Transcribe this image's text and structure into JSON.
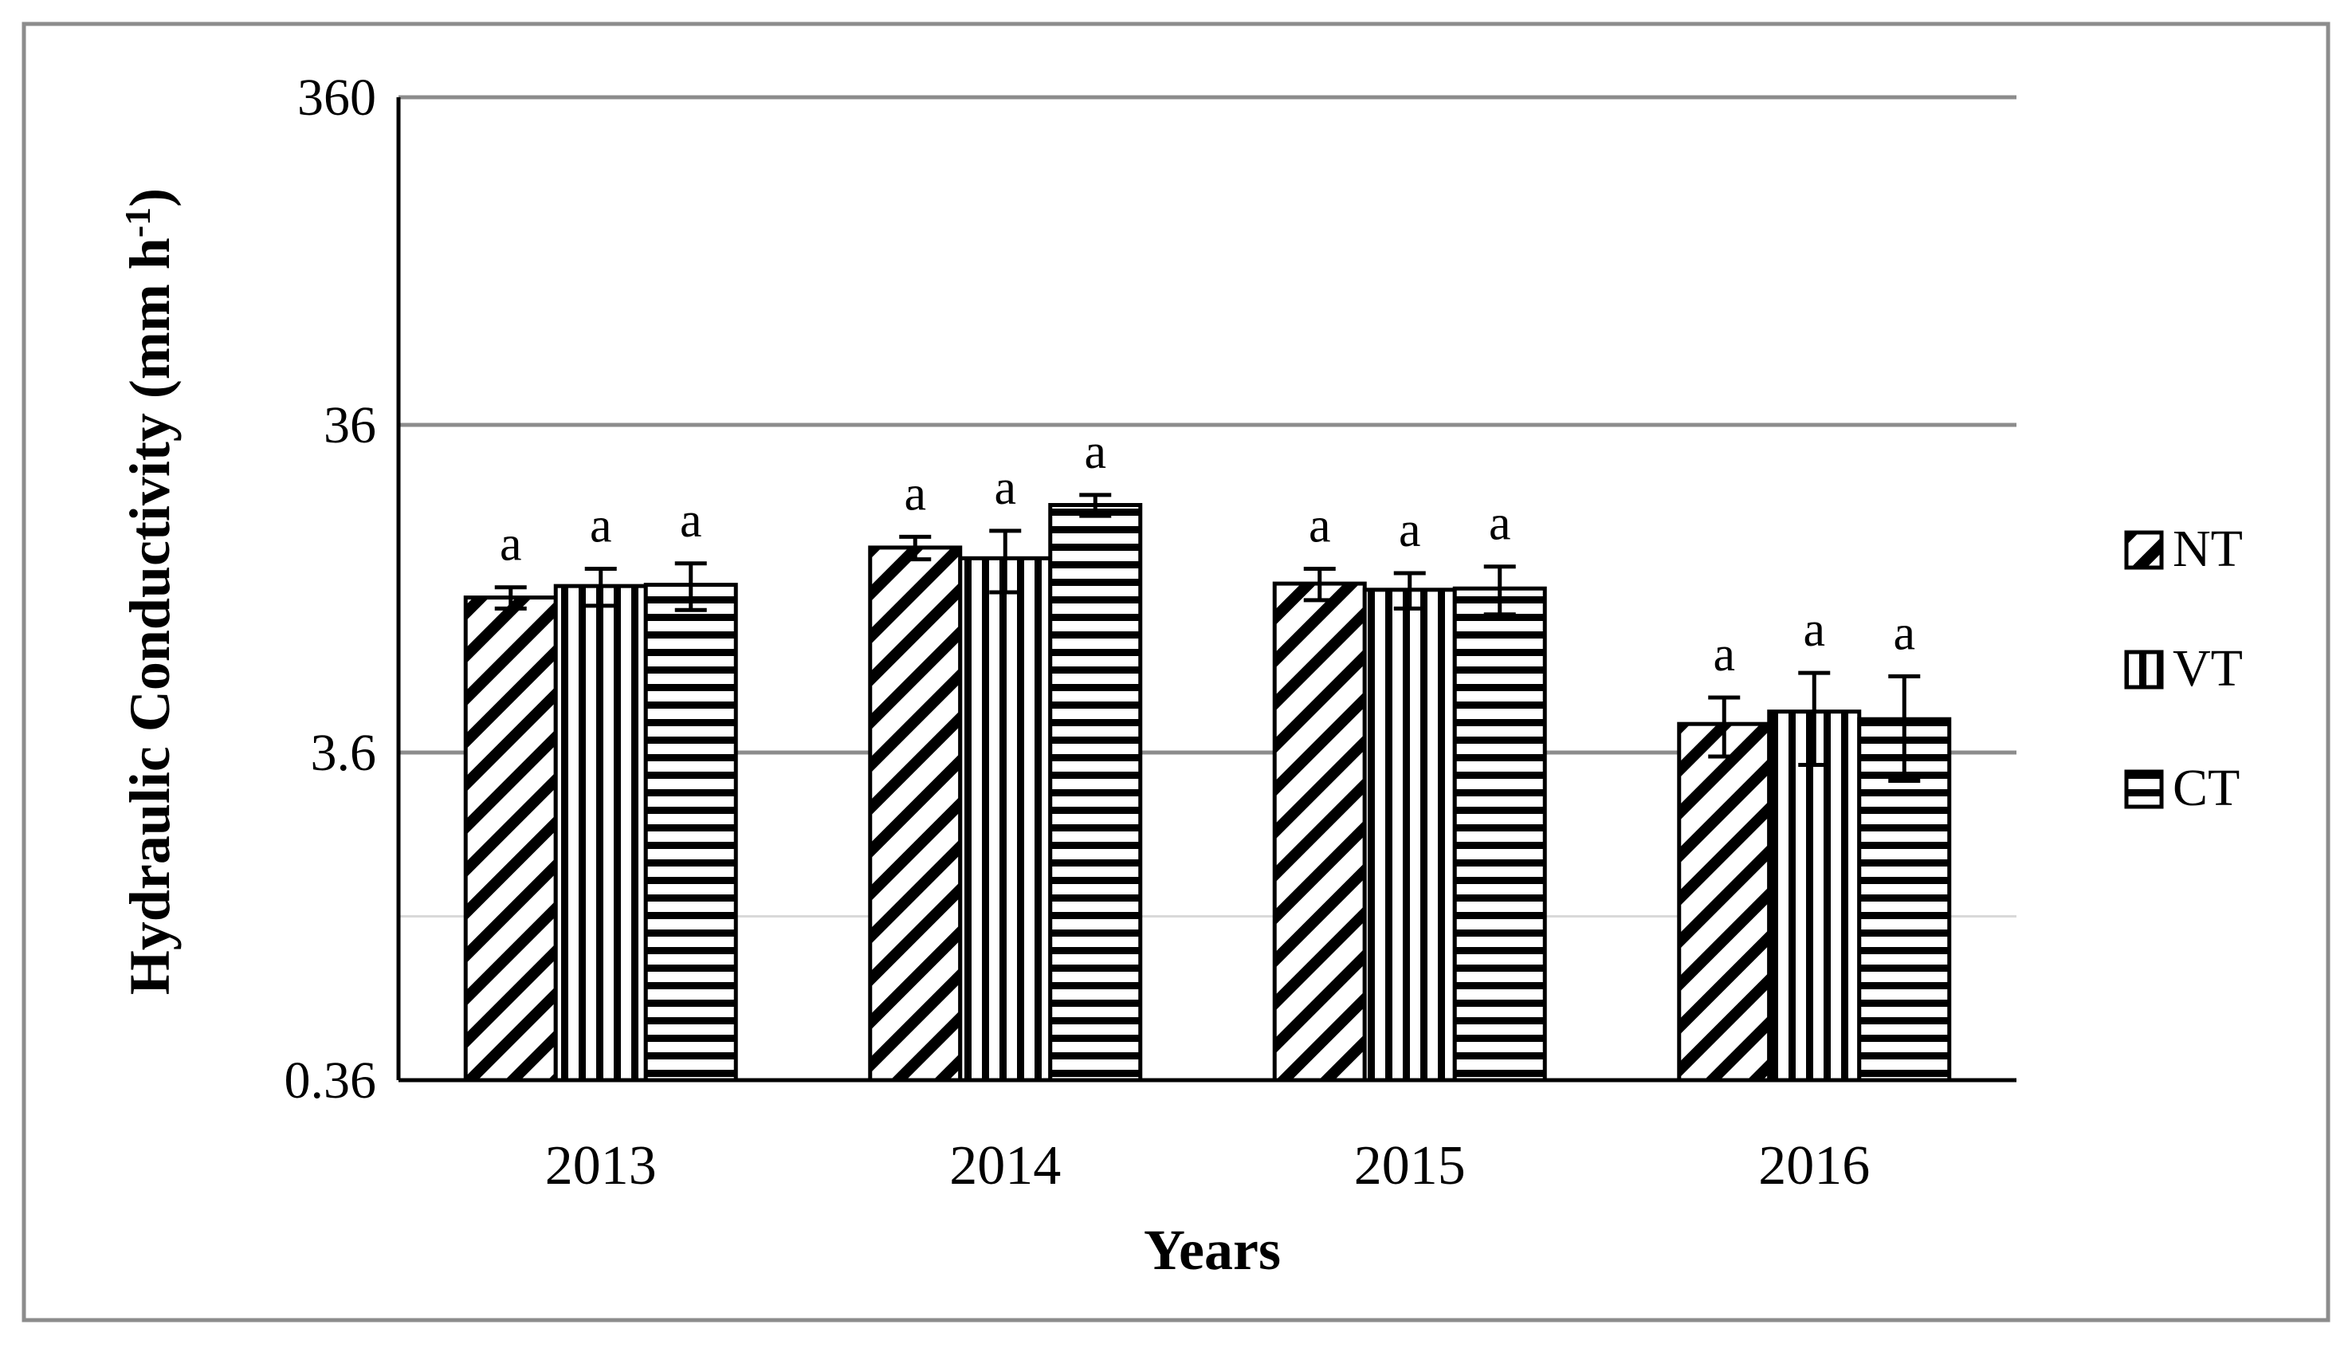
{
  "chart_data": {
    "type": "bar",
    "xlabel": "Years",
    "ylabel": "Hydraulic Conductivity (mm h",
    "ylabel_sup": "-1",
    "ylabel_close": ")",
    "y_scale": "log",
    "ylim": [
      0.36,
      360
    ],
    "y_ticks": [
      0.36,
      3.6,
      36,
      360
    ],
    "y_tick_labels": [
      "0.36",
      "3.6",
      "36",
      "360"
    ],
    "grid": true,
    "legend_position": "right",
    "categories": [
      "2013",
      "2014",
      "2015",
      "2016"
    ],
    "series": [
      {
        "name": "NT",
        "pattern": "diagonal",
        "values": [
          10.7,
          15.2,
          11.8,
          4.4
        ],
        "errors": [
          0.8,
          1.2,
          1.3,
          0.9
        ],
        "letters": [
          "a",
          "a",
          "a",
          "a"
        ]
      },
      {
        "name": "VT",
        "pattern": "vertical",
        "values": [
          11.6,
          14.1,
          11.3,
          4.8
        ],
        "errors": [
          1.5,
          3.0,
          1.4,
          1.5
        ],
        "letters": [
          "a",
          "a",
          "a",
          "a"
        ]
      },
      {
        "name": "CT",
        "pattern": "horizontal",
        "values": [
          11.7,
          20.5,
          11.4,
          4.55
        ],
        "errors": [
          1.9,
          1.5,
          1.9,
          1.6
        ],
        "letters": [
          "a",
          "a",
          "a",
          "a"
        ]
      }
    ]
  }
}
